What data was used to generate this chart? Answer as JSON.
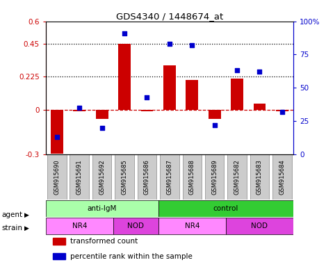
{
  "title": "GDS4340 / 1448674_at",
  "samples": [
    "GSM915690",
    "GSM915691",
    "GSM915692",
    "GSM915685",
    "GSM915686",
    "GSM915687",
    "GSM915688",
    "GSM915689",
    "GSM915682",
    "GSM915683",
    "GSM915684"
  ],
  "bar_values": [
    -0.295,
    -0.01,
    -0.06,
    0.45,
    -0.01,
    0.3,
    0.205,
    -0.06,
    0.21,
    0.045,
    -0.01
  ],
  "scatter_values": [
    13,
    35,
    20,
    91,
    43,
    83,
    82,
    22,
    63,
    62,
    32
  ],
  "ylim_left": [
    -0.3,
    0.6
  ],
  "ylim_right": [
    0,
    100
  ],
  "yticks_left": [
    -0.3,
    0,
    0.225,
    0.45,
    0.6
  ],
  "yticks_right": [
    0,
    25,
    50,
    75,
    100
  ],
  "ytick_labels_left": [
    "-0.3",
    "0",
    "0.225",
    "0.45",
    "0.6"
  ],
  "ytick_labels_right": [
    "0",
    "25",
    "50",
    "75",
    "100%"
  ],
  "hlines": [
    0.225,
    0.45
  ],
  "bar_color": "#cc0000",
  "scatter_color": "#0000cc",
  "dashed_line_color": "#cc0000",
  "agent_groups": [
    {
      "label": "anti-IgM",
      "start": 0,
      "end": 5,
      "color": "#aaffaa"
    },
    {
      "label": "control",
      "start": 5,
      "end": 11,
      "color": "#33cc33"
    }
  ],
  "strain_groups": [
    {
      "label": "NR4",
      "start": 0,
      "end": 3,
      "color": "#ff88ff"
    },
    {
      "label": "NOD",
      "start": 3,
      "end": 5,
      "color": "#dd44dd"
    },
    {
      "label": "NR4",
      "start": 5,
      "end": 8,
      "color": "#ff88ff"
    },
    {
      "label": "NOD",
      "start": 8,
      "end": 11,
      "color": "#dd44dd"
    }
  ],
  "legend_items": [
    {
      "label": "transformed count",
      "color": "#cc0000"
    },
    {
      "label": "percentile rank within the sample",
      "color": "#0000cc"
    }
  ],
  "agent_label": "agent",
  "strain_label": "strain",
  "xtick_bg": "#cccccc"
}
